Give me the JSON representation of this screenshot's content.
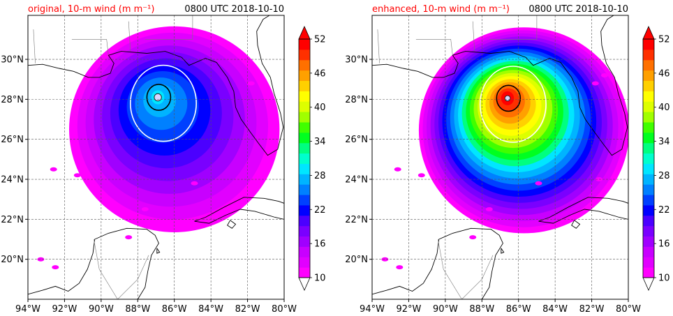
{
  "chart_data": [
    {
      "type": "heatmap",
      "title_left": "original, 10-m wind (m m⁻¹)",
      "title_right": "0800 UTC 2018-10-10",
      "xlim": [
        -94,
        -80
      ],
      "ylim": [
        18,
        32.2
      ],
      "x_ticks": [
        -94,
        -92,
        -90,
        -88,
        -86,
        -84,
        -82,
        -80
      ],
      "x_tick_labels": [
        "94°W",
        "92°W",
        "90°W",
        "88°W",
        "86°W",
        "84°W",
        "82°W",
        "80°W"
      ],
      "y_ticks": [
        20,
        22,
        24,
        26,
        28,
        30
      ],
      "y_tick_labels": [
        "20°N",
        "22°N",
        "24°N",
        "26°N",
        "28°N",
        "30°N"
      ],
      "grid": true,
      "field": {
        "center_lon": -86.9,
        "center_lat": 28.1,
        "peak_wind": 30,
        "eye_radius_deg": 0.2,
        "contour_white": 24,
        "contour_black": 34
      },
      "colorbar": {
        "levels": [
          10,
          52
        ],
        "tick_labels": [
          "52",
          "46",
          "40",
          "34",
          "28",
          "22",
          "16",
          "10"
        ],
        "extend": "both"
      }
    },
    {
      "type": "heatmap",
      "title_left": "enhanced, 10-m wind (m m⁻¹)",
      "title_right": "0800 UTC 2018-10-10",
      "xlim": [
        -94,
        -80
      ],
      "ylim": [
        18,
        32.2
      ],
      "x_ticks": [
        -94,
        -92,
        -90,
        -88,
        -86,
        -84,
        -82,
        -80
      ],
      "x_tick_labels": [
        "94°W",
        "92°W",
        "90°W",
        "88°W",
        "86°W",
        "84°W",
        "82°W",
        "80°W"
      ],
      "y_ticks": [
        20,
        22,
        24,
        26,
        28,
        30
      ],
      "y_tick_labels": [
        "20°N",
        "22°N",
        "24°N",
        "26°N",
        "28°N",
        "30°N"
      ],
      "grid": true,
      "field": {
        "center_lon": -86.6,
        "center_lat": 28.05,
        "peak_wind": 52,
        "eye_radius_deg": 0.15,
        "contour_white": 24,
        "contour_black": 34
      },
      "colorbar": {
        "levels": [
          10,
          52
        ],
        "tick_labels": [
          "52",
          "46",
          "40",
          "34",
          "28",
          "22",
          "16",
          "10"
        ],
        "extend": "both"
      }
    }
  ],
  "colors": {
    "title_left": "#ff0000",
    "title_right": "#000000",
    "colormap": [
      "#ff00ff",
      "#e100ff",
      "#c800ff",
      "#a000ff",
      "#7a00ff",
      "#4b00ff",
      "#0000ff",
      "#0040ff",
      "#0080ff",
      "#00b4ff",
      "#00e6ff",
      "#00ffcc",
      "#00ff80",
      "#00ff20",
      "#40ff00",
      "#a0ff00",
      "#ddff00",
      "#ffff00",
      "#ffd000",
      "#ffa000",
      "#ff7000",
      "#ff3000",
      "#ff0000"
    ]
  }
}
